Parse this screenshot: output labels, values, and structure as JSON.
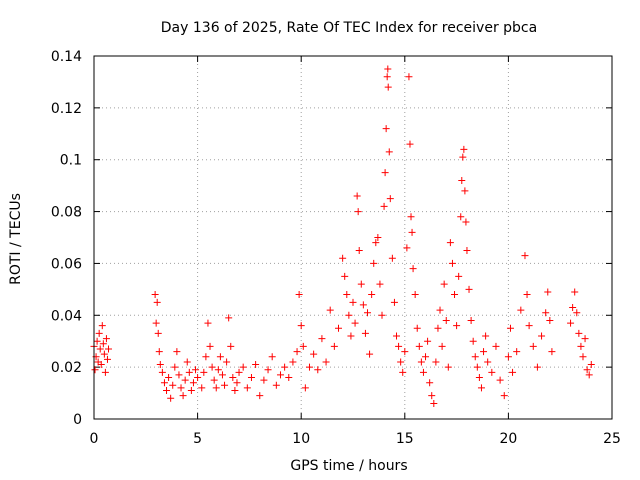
{
  "chart_data": {
    "type": "scatter",
    "title": "Day 136 of 2025, Rate Of TEC Index for receiver pbca",
    "xlabel": "GPS time / hours",
    "ylabel": "ROTI / TECUs",
    "xlim": [
      0,
      25
    ],
    "ylim": [
      0,
      0.14
    ],
    "x_ticks": [
      "0",
      "5",
      "10",
      "15",
      "20",
      "25"
    ],
    "y_ticks": [
      "0",
      "0.02",
      "0.04",
      "0.06",
      "0.08",
      "0.1",
      "0.12",
      "0.14"
    ],
    "grid": true,
    "marker": "plus",
    "color": "#ff0000",
    "series": [
      {
        "points": [
          [
            0.0,
            0.028
          ],
          [
            0.05,
            0.019
          ],
          [
            0.1,
            0.024
          ],
          [
            0.15,
            0.03
          ],
          [
            0.2,
            0.022
          ],
          [
            0.25,
            0.033
          ],
          [
            0.3,
            0.027
          ],
          [
            0.35,
            0.021
          ],
          [
            0.4,
            0.036
          ],
          [
            0.45,
            0.029
          ],
          [
            0.5,
            0.025
          ],
          [
            0.55,
            0.018
          ],
          [
            0.6,
            0.031
          ],
          [
            0.65,
            0.023
          ],
          [
            0.7,
            0.027
          ],
          [
            2.95,
            0.048
          ],
          [
            3.0,
            0.037
          ],
          [
            3.05,
            0.045
          ],
          [
            3.1,
            0.033
          ],
          [
            3.15,
            0.026
          ],
          [
            3.2,
            0.021
          ],
          [
            3.3,
            0.018
          ],
          [
            3.4,
            0.014
          ],
          [
            3.5,
            0.011
          ],
          [
            3.6,
            0.016
          ],
          [
            3.7,
            0.008
          ],
          [
            3.8,
            0.013
          ],
          [
            3.9,
            0.02
          ],
          [
            4.0,
            0.026
          ],
          [
            4.1,
            0.017
          ],
          [
            4.2,
            0.012
          ],
          [
            4.3,
            0.009
          ],
          [
            4.4,
            0.015
          ],
          [
            4.5,
            0.022
          ],
          [
            4.6,
            0.018
          ],
          [
            4.7,
            0.011
          ],
          [
            4.8,
            0.014
          ],
          [
            4.9,
            0.019
          ],
          [
            5.0,
            0.016
          ],
          [
            5.2,
            0.012
          ],
          [
            5.3,
            0.018
          ],
          [
            5.4,
            0.024
          ],
          [
            5.5,
            0.037
          ],
          [
            5.6,
            0.028
          ],
          [
            5.7,
            0.02
          ],
          [
            5.8,
            0.015
          ],
          [
            5.9,
            0.012
          ],
          [
            6.0,
            0.019
          ],
          [
            6.1,
            0.024
          ],
          [
            6.2,
            0.017
          ],
          [
            6.3,
            0.013
          ],
          [
            6.4,
            0.022
          ],
          [
            6.5,
            0.039
          ],
          [
            6.6,
            0.028
          ],
          [
            6.7,
            0.016
          ],
          [
            6.8,
            0.011
          ],
          [
            6.9,
            0.014
          ],
          [
            7.0,
            0.018
          ],
          [
            7.2,
            0.02
          ],
          [
            7.4,
            0.012
          ],
          [
            7.6,
            0.016
          ],
          [
            7.8,
            0.021
          ],
          [
            8.0,
            0.009
          ],
          [
            8.2,
            0.015
          ],
          [
            8.4,
            0.019
          ],
          [
            8.6,
            0.024
          ],
          [
            8.8,
            0.013
          ],
          [
            9.0,
            0.017
          ],
          [
            9.2,
            0.02
          ],
          [
            9.4,
            0.016
          ],
          [
            9.6,
            0.022
          ],
          [
            9.8,
            0.026
          ],
          [
            9.9,
            0.048
          ],
          [
            10.0,
            0.036
          ],
          [
            10.1,
            0.028
          ],
          [
            10.2,
            0.012
          ],
          [
            10.4,
            0.02
          ],
          [
            10.6,
            0.025
          ],
          [
            10.8,
            0.019
          ],
          [
            11.0,
            0.031
          ],
          [
            11.2,
            0.022
          ],
          [
            11.4,
            0.042
          ],
          [
            11.6,
            0.028
          ],
          [
            11.8,
            0.035
          ],
          [
            12.0,
            0.062
          ],
          [
            12.1,
            0.055
          ],
          [
            12.2,
            0.048
          ],
          [
            12.3,
            0.04
          ],
          [
            12.4,
            0.032
          ],
          [
            12.5,
            0.045
          ],
          [
            12.6,
            0.037
          ],
          [
            12.7,
            0.086
          ],
          [
            12.75,
            0.08
          ],
          [
            12.8,
            0.065
          ],
          [
            12.9,
            0.052
          ],
          [
            13.0,
            0.044
          ],
          [
            13.1,
            0.033
          ],
          [
            13.2,
            0.041
          ],
          [
            13.3,
            0.025
          ],
          [
            13.4,
            0.048
          ],
          [
            13.5,
            0.06
          ],
          [
            13.6,
            0.068
          ],
          [
            13.7,
            0.07
          ],
          [
            13.8,
            0.052
          ],
          [
            13.9,
            0.04
          ],
          [
            14.0,
            0.082
          ],
          [
            14.05,
            0.095
          ],
          [
            14.1,
            0.112
          ],
          [
            14.15,
            0.132
          ],
          [
            14.18,
            0.135
          ],
          [
            14.2,
            0.128
          ],
          [
            14.25,
            0.103
          ],
          [
            14.3,
            0.085
          ],
          [
            14.4,
            0.062
          ],
          [
            14.5,
            0.045
          ],
          [
            14.6,
            0.032
          ],
          [
            14.7,
            0.028
          ],
          [
            14.8,
            0.022
          ],
          [
            14.9,
            0.018
          ],
          [
            15.0,
            0.026
          ],
          [
            15.1,
            0.066
          ],
          [
            15.2,
            0.132
          ],
          [
            15.25,
            0.106
          ],
          [
            15.3,
            0.078
          ],
          [
            15.35,
            0.072
          ],
          [
            15.4,
            0.058
          ],
          [
            15.5,
            0.048
          ],
          [
            15.6,
            0.035
          ],
          [
            15.7,
            0.028
          ],
          [
            15.8,
            0.022
          ],
          [
            15.9,
            0.018
          ],
          [
            16.0,
            0.024
          ],
          [
            16.1,
            0.03
          ],
          [
            16.2,
            0.014
          ],
          [
            16.3,
            0.009
          ],
          [
            16.4,
            0.006
          ],
          [
            16.5,
            0.022
          ],
          [
            16.6,
            0.035
          ],
          [
            16.7,
            0.042
          ],
          [
            16.8,
            0.028
          ],
          [
            16.9,
            0.052
          ],
          [
            17.0,
            0.038
          ],
          [
            17.1,
            0.02
          ],
          [
            17.2,
            0.068
          ],
          [
            17.3,
            0.06
          ],
          [
            17.4,
            0.048
          ],
          [
            17.5,
            0.036
          ],
          [
            17.6,
            0.055
          ],
          [
            17.7,
            0.078
          ],
          [
            17.75,
            0.092
          ],
          [
            17.8,
            0.101
          ],
          [
            17.85,
            0.104
          ],
          [
            17.9,
            0.088
          ],
          [
            17.95,
            0.076
          ],
          [
            18.0,
            0.065
          ],
          [
            18.1,
            0.05
          ],
          [
            18.2,
            0.038
          ],
          [
            18.3,
            0.03
          ],
          [
            18.4,
            0.024
          ],
          [
            18.5,
            0.02
          ],
          [
            18.6,
            0.016
          ],
          [
            18.7,
            0.012
          ],
          [
            18.8,
            0.026
          ],
          [
            18.9,
            0.032
          ],
          [
            19.0,
            0.022
          ],
          [
            19.2,
            0.018
          ],
          [
            19.4,
            0.028
          ],
          [
            19.6,
            0.015
          ],
          [
            19.8,
            0.009
          ],
          [
            20.0,
            0.024
          ],
          [
            20.1,
            0.035
          ],
          [
            20.2,
            0.018
          ],
          [
            20.4,
            0.026
          ],
          [
            20.6,
            0.042
          ],
          [
            20.8,
            0.063
          ],
          [
            20.9,
            0.048
          ],
          [
            21.0,
            0.036
          ],
          [
            21.2,
            0.028
          ],
          [
            21.4,
            0.02
          ],
          [
            21.6,
            0.032
          ],
          [
            21.8,
            0.041
          ],
          [
            21.9,
            0.049
          ],
          [
            22.0,
            0.038
          ],
          [
            22.1,
            0.026
          ],
          [
            23.0,
            0.037
          ],
          [
            23.1,
            0.043
          ],
          [
            23.2,
            0.049
          ],
          [
            23.3,
            0.041
          ],
          [
            23.4,
            0.033
          ],
          [
            23.5,
            0.028
          ],
          [
            23.6,
            0.024
          ],
          [
            23.7,
            0.031
          ],
          [
            23.8,
            0.019
          ],
          [
            23.9,
            0.017
          ],
          [
            24.0,
            0.021
          ]
        ]
      }
    ]
  }
}
